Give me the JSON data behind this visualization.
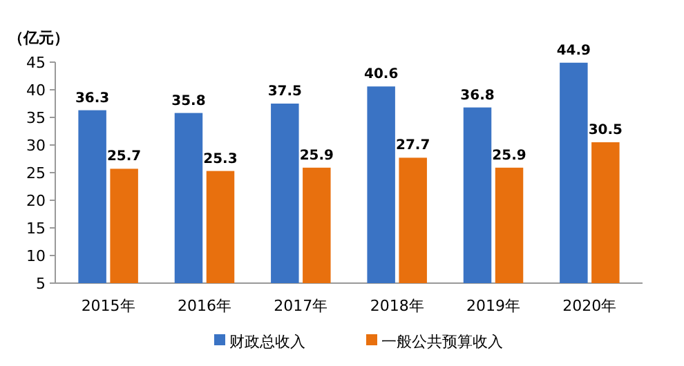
{
  "chart_data": {
    "type": "bar",
    "ylabel": "（亿元）",
    "categories": [
      "2015年",
      "2016年",
      "2017年",
      "2018年",
      "2019年",
      "2020年"
    ],
    "series": [
      {
        "name": "财政总收入",
        "color": "#3a73c4",
        "values": [
          36.3,
          35.8,
          37.5,
          40.6,
          36.8,
          44.9
        ]
      },
      {
        "name": "一般公共预算收入",
        "color": "#e8700e",
        "values": [
          25.7,
          25.3,
          25.9,
          27.7,
          25.9,
          30.5
        ]
      }
    ],
    "ylim": [
      5,
      45
    ],
    "yticks": [
      5,
      10,
      15,
      20,
      25,
      30,
      35,
      40,
      45
    ],
    "data_labels": true,
    "grid": false,
    "legend": "bottom"
  }
}
